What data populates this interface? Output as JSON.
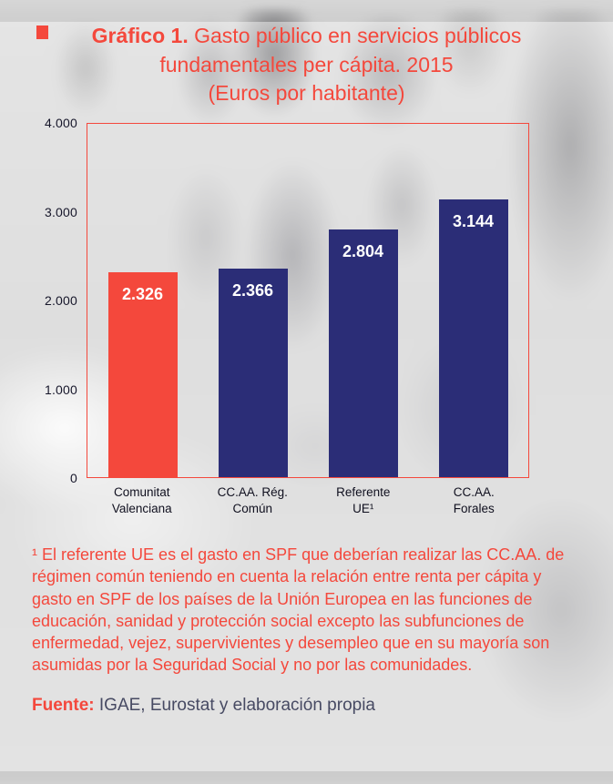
{
  "title": {
    "prefix": "Gráfico 1.",
    "main": "Gasto público en servicios públicos fundamentales per cápita. 2015",
    "sub": "(Euros por habitante)"
  },
  "chart_data": {
    "type": "bar",
    "title": "Gráfico 1. Gasto público en servicios públicos fundamentales per cápita. 2015 (Euros por habitante)",
    "categories": [
      "Comunitat\nValenciana",
      "CC.AA. Rég.\nComún",
      "Referente\nUE¹",
      "CC.AA.\nForales"
    ],
    "values": [
      2326,
      2366,
      2804,
      3144
    ],
    "value_labels": [
      "2.326",
      "2.366",
      "2.804",
      "3.144"
    ],
    "bar_colors": [
      "#f4483c",
      "#2b2d77",
      "#2b2d77",
      "#2b2d77"
    ],
    "ylim": [
      0,
      4000
    ],
    "y_ticks": [
      0,
      1000,
      2000,
      3000,
      4000
    ],
    "y_tick_labels": [
      "0",
      "1.000",
      "2.000",
      "3.000",
      "4.000"
    ],
    "xlabel": "",
    "ylabel": "",
    "grid": false,
    "legend": false,
    "unit": "Euros por habitante"
  },
  "footnote": "¹ El referente UE es el gasto en SPF que deberían realizar las CC.AA. de régimen común teniendo en cuenta la relación entre renta per cápita y gasto en SPF de los países de la Unión Europea en las funciones de educación, sanidad y protección social excepto las subfunciones de enfermedad, vejez, supervivientes y desempleo que en su mayoría son asumidas por la Seguridad Social y no por las comunidades.",
  "source": {
    "label": "Fuente:",
    "text": "IGAE, Eurostat y elaboración propia"
  },
  "colors": {
    "accent_red": "#f4483c",
    "navy": "#2b2d77",
    "text_dark": "#474a63"
  }
}
